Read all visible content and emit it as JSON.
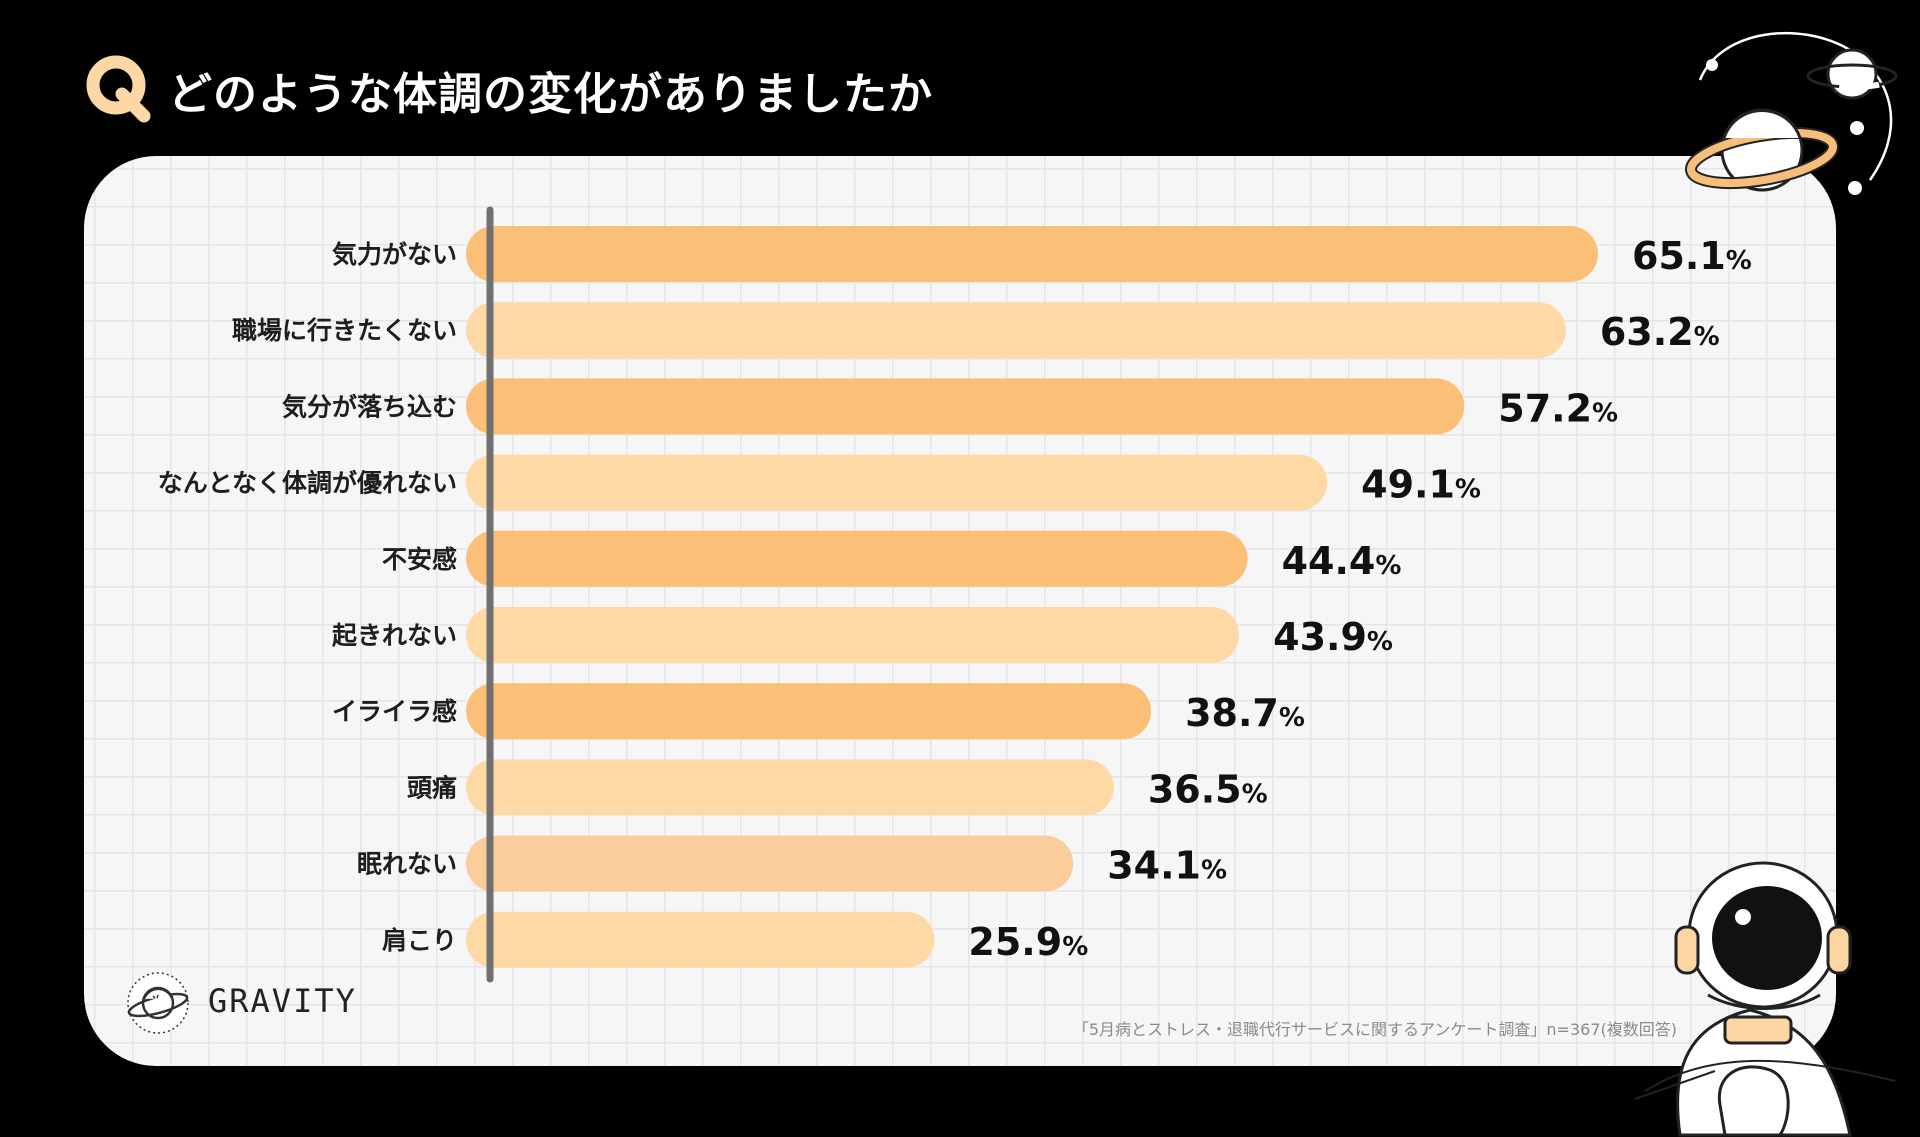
{
  "question": {
    "badge": "Q",
    "title": "どのような体調の変化がありましたか"
  },
  "chart_data": {
    "type": "bar",
    "orientation": "horizontal",
    "title": "どのような体調の変化がありましたか",
    "unit": "%",
    "categories": [
      "気力がない",
      "職場に行きたくない",
      "気分が落ち込む",
      "なんとなく体調が優れない",
      "不安感",
      "起きれない",
      "イライラ感",
      "頭痛",
      "眠れない",
      "肩こり"
    ],
    "values": [
      65.1,
      63.2,
      57.2,
      49.1,
      44.4,
      43.9,
      38.7,
      36.5,
      34.1,
      25.9
    ],
    "value_labels": [
      "65.1",
      "63.2",
      "57.2",
      "49.1",
      "44.4",
      "43.9",
      "38.7",
      "36.5",
      "34.1",
      "25.9"
    ],
    "xlim": [
      0,
      70
    ],
    "colors": [
      "#fbbf78",
      "#fed9a6",
      "#fbbf78",
      "#fed9a6",
      "#fbbf78",
      "#fed9a6",
      "#fbbf78",
      "#fed9a6",
      "#fbcd9c",
      "#fed9a6"
    ],
    "axis_color": "#707070"
  },
  "brand": {
    "name": "GRAVITY"
  },
  "source_note": "「5月病とストレス・退職代行サービスに関するアンケート調査」n=367(複数回答)",
  "colors": {
    "background": "#000000",
    "panel": "#f6f6f6",
    "accent": "#fbbf78",
    "badge": "#fdd8a6"
  },
  "icons": {
    "badge": "q-badge-icon",
    "logo": "planet-logo-icon",
    "decor_top": "planet-icon",
    "decor_bottom": "astronaut-icon"
  }
}
